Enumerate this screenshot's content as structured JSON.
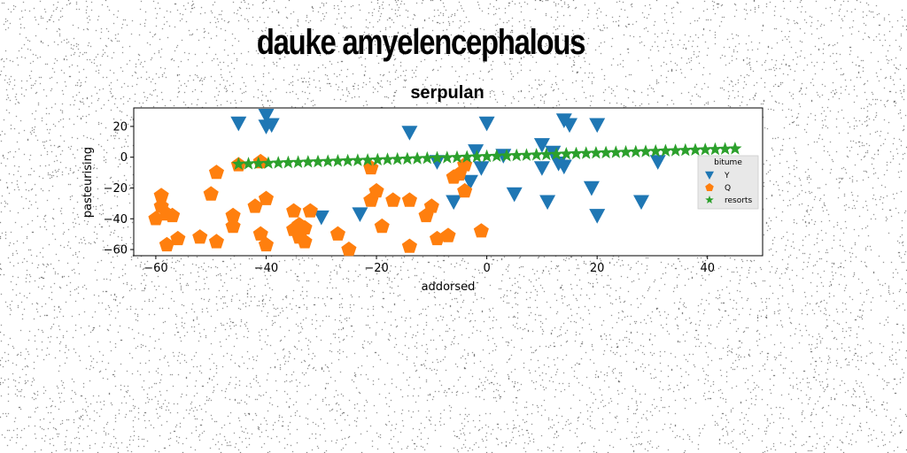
{
  "figure": {
    "suptitle": "dauke amyelencephalous"
  },
  "chart_data": {
    "type": "scatter",
    "title": "serpulan",
    "xlabel": "addorsed",
    "ylabel": "pasteurising",
    "xlim": [
      -64,
      50
    ],
    "ylim": [
      -64,
      32
    ],
    "xticks": [
      -60,
      -40,
      -20,
      0,
      20,
      40
    ],
    "yticks": [
      -60,
      -40,
      -20,
      0,
      20
    ],
    "grid": false,
    "legend": {
      "title": "bitume",
      "position": "right"
    },
    "series": [
      {
        "name": "Y",
        "marker": "triangle-down",
        "color": "#1f77b4",
        "points": [
          [
            -45,
            22
          ],
          [
            -40,
            27
          ],
          [
            -40,
            20
          ],
          [
            -39,
            21
          ],
          [
            -14,
            16
          ],
          [
            -30,
            -39
          ],
          [
            -23,
            -37
          ],
          [
            -9,
            -3
          ],
          [
            -6,
            -29
          ],
          [
            -3,
            -16
          ],
          [
            -2,
            4
          ],
          [
            -1,
            -7
          ],
          [
            0,
            22
          ],
          [
            3,
            1
          ],
          [
            5,
            -24
          ],
          [
            10,
            8
          ],
          [
            10,
            -7
          ],
          [
            11,
            -29
          ],
          [
            12,
            3
          ],
          [
            13,
            -4
          ],
          [
            14,
            -6
          ],
          [
            14,
            24
          ],
          [
            15,
            21
          ],
          [
            19,
            -20
          ],
          [
            20,
            21
          ],
          [
            20,
            -38
          ],
          [
            28,
            -29
          ],
          [
            31,
            -3
          ]
        ]
      },
      {
        "name": "Q",
        "marker": "pentagon",
        "color": "#ff7f0e",
        "points": [
          [
            -60,
            -40
          ],
          [
            -59,
            -25
          ],
          [
            -59,
            -32
          ],
          [
            -58,
            -37
          ],
          [
            -58,
            -57
          ],
          [
            -57,
            -38
          ],
          [
            -56,
            -53
          ],
          [
            -52,
            -52
          ],
          [
            -50,
            -24
          ],
          [
            -49,
            -10
          ],
          [
            -49,
            -55
          ],
          [
            -46,
            -38
          ],
          [
            -46,
            -45
          ],
          [
            -45,
            -5
          ],
          [
            -42,
            -32
          ],
          [
            -41,
            -3
          ],
          [
            -41,
            -50
          ],
          [
            -40,
            -27
          ],
          [
            -40,
            -57
          ],
          [
            -35,
            -35
          ],
          [
            -35,
            -47
          ],
          [
            -34,
            -44
          ],
          [
            -34,
            -52
          ],
          [
            -33,
            -55
          ],
          [
            -33,
            -46
          ],
          [
            -32,
            -35
          ],
          [
            -27,
            -50
          ],
          [
            -25,
            -60
          ],
          [
            -21,
            -7
          ],
          [
            -21,
            -28
          ],
          [
            -20,
            -22
          ],
          [
            -19,
            -45
          ],
          [
            -17,
            -28
          ],
          [
            -14,
            -28
          ],
          [
            -14,
            -58
          ],
          [
            -11,
            -38
          ],
          [
            -10,
            -32
          ],
          [
            -9,
            -53
          ],
          [
            -7,
            -51
          ],
          [
            -6,
            -13
          ],
          [
            -5,
            -11
          ],
          [
            -4,
            -22
          ],
          [
            -4,
            -5
          ],
          [
            -1,
            -48
          ]
        ]
      },
      {
        "name": "resorts",
        "marker": "star",
        "color": "#2ca02c",
        "points": [
          [
            -45.0,
            -4.5
          ],
          [
            -43.2,
            -4.3
          ],
          [
            -41.4,
            -4.1
          ],
          [
            -39.6,
            -3.9
          ],
          [
            -37.8,
            -3.7
          ],
          [
            -36.0,
            -3.5
          ],
          [
            -34.2,
            -3.3
          ],
          [
            -32.4,
            -3.1
          ],
          [
            -30.6,
            -2.9
          ],
          [
            -28.8,
            -2.7
          ],
          [
            -27.0,
            -2.5
          ],
          [
            -25.2,
            -2.3
          ],
          [
            -23.4,
            -2.1
          ],
          [
            -21.6,
            -1.9
          ],
          [
            -19.8,
            -1.7
          ],
          [
            -18.0,
            -1.5
          ],
          [
            -16.2,
            -1.3
          ],
          [
            -14.4,
            -1.1
          ],
          [
            -12.6,
            -0.9
          ],
          [
            -10.8,
            -0.7
          ],
          [
            -9.0,
            -0.5
          ],
          [
            -7.2,
            -0.3
          ],
          [
            -5.4,
            -0.1
          ],
          [
            -3.6,
            0.1
          ],
          [
            -1.8,
            0.3
          ],
          [
            0.0,
            0.5
          ],
          [
            1.8,
            0.7
          ],
          [
            3.6,
            0.9
          ],
          [
            5.4,
            1.1
          ],
          [
            7.2,
            1.3
          ],
          [
            9.0,
            1.5
          ],
          [
            10.8,
            1.7
          ],
          [
            12.6,
            1.9
          ],
          [
            14.4,
            2.1
          ],
          [
            16.2,
            2.3
          ],
          [
            18.0,
            2.5
          ],
          [
            19.8,
            2.7
          ],
          [
            21.6,
            2.9
          ],
          [
            23.4,
            3.1
          ],
          [
            25.2,
            3.3
          ],
          [
            27.0,
            3.5
          ],
          [
            28.8,
            3.7
          ],
          [
            30.6,
            3.9
          ],
          [
            32.4,
            4.1
          ],
          [
            34.2,
            4.3
          ],
          [
            36.0,
            4.5
          ],
          [
            37.8,
            4.7
          ],
          [
            39.6,
            4.9
          ],
          [
            41.4,
            5.1
          ],
          [
            43.2,
            5.3
          ],
          [
            45.0,
            5.5
          ]
        ]
      }
    ]
  }
}
